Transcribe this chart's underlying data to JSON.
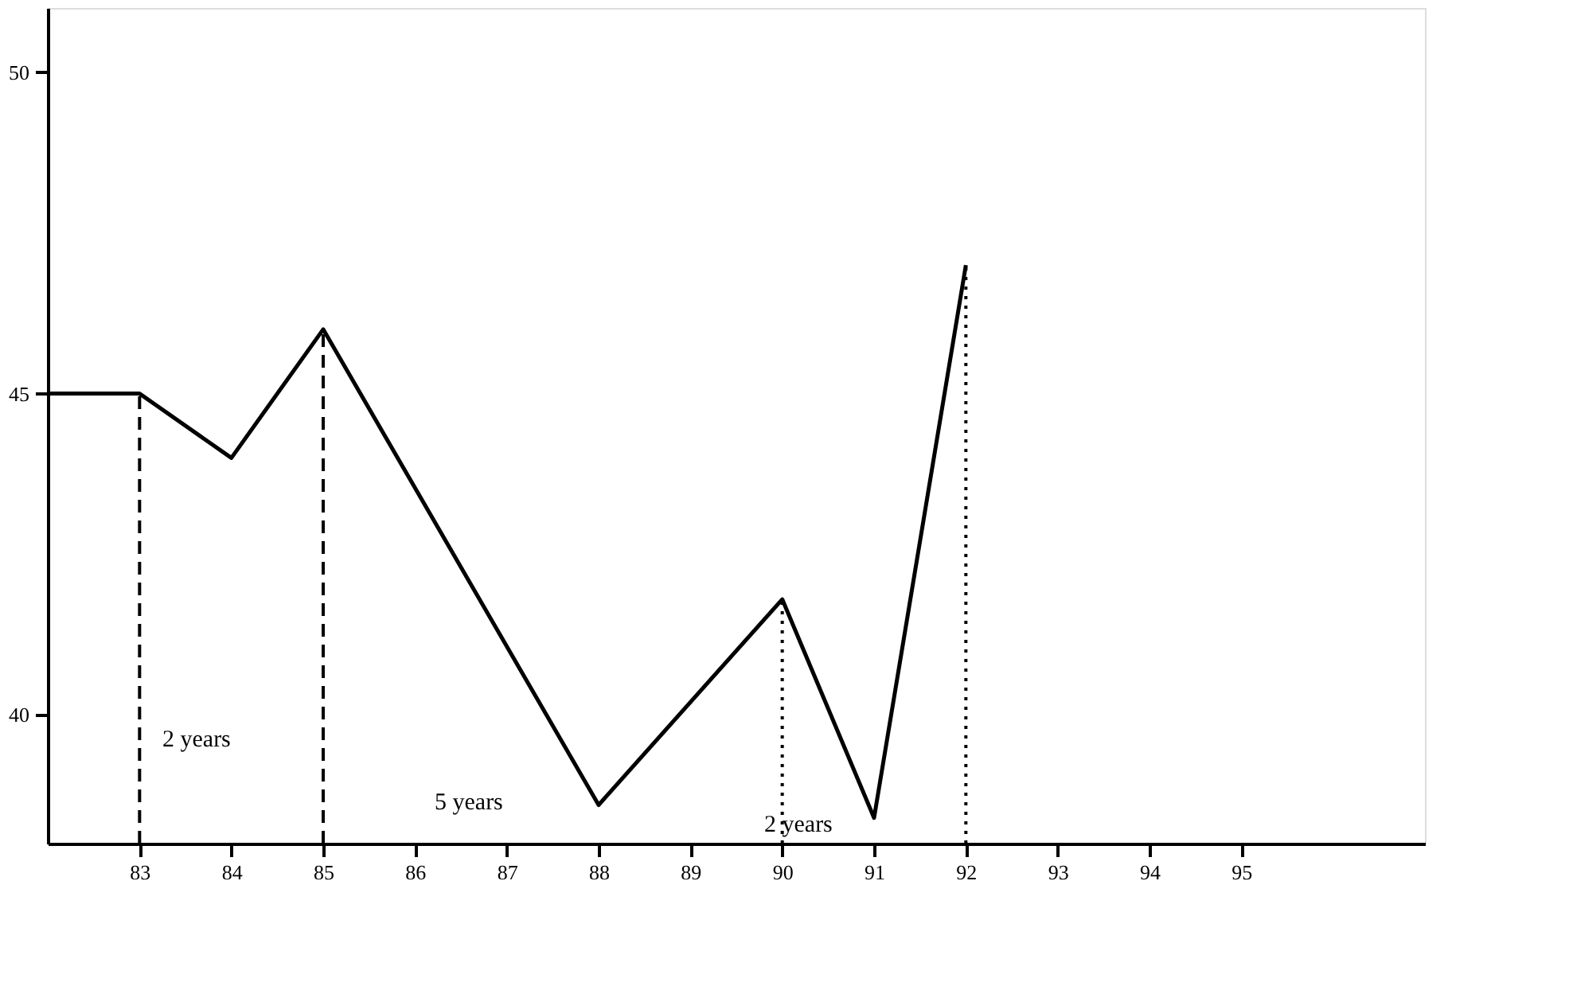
{
  "chart_data": {
    "type": "line",
    "x": [
      82,
      83,
      84,
      85,
      88,
      90,
      91,
      92
    ],
    "series": [
      {
        "color": "#000000",
        "values": [
          45,
          45,
          44,
          46,
          38.6,
          41.8,
          38.4,
          47
        ]
      }
    ],
    "xlim": [
      82,
      97
    ],
    "xticks": [
      83,
      84,
      85,
      86,
      87,
      88,
      89,
      90,
      91,
      92,
      93,
      94,
      95
    ],
    "ylim": [
      38,
      51
    ],
    "yticks": [
      40,
      45,
      50
    ],
    "grid": false,
    "marker": "none",
    "line_style": "solid",
    "ref_lines": [
      {
        "axis": "x",
        "value": 83,
        "line_style": "dashed",
        "color": "#000000"
      },
      {
        "axis": "x",
        "value": 85,
        "line_style": "dashed",
        "color": "#000000"
      },
      {
        "axis": "x",
        "value": 90,
        "line_style": "dotted",
        "color": "#000000"
      },
      {
        "axis": "x",
        "value": 92,
        "line_style": "dotted",
        "color": "#000000"
      }
    ],
    "annotations": [
      "2 years",
      "5 years",
      "2 years"
    ]
  }
}
